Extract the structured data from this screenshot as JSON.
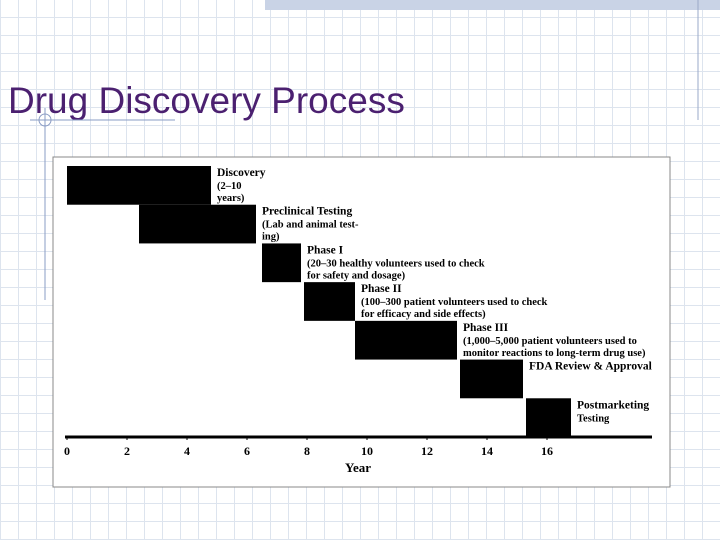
{
  "chart_data": {
    "type": "gantt",
    "title": "Drug Discovery Process",
    "tasks": [
      {
        "name": "Discovery",
        "notes": [
          "(2–10",
          "years)"
        ],
        "start": 0,
        "end": 4.8
      },
      {
        "name": "Preclinical Testing",
        "notes": [
          "(Lab and animal test-",
          "ing)"
        ],
        "start": 2.4,
        "end": 6.3
      },
      {
        "name": "Phase I",
        "notes": [
          "(20–30 healthy volunteers used to check",
          "for safety and dosage)"
        ],
        "start": 6.5,
        "end": 7.8
      },
      {
        "name": "Phase II",
        "notes": [
          "(100–300 patient volunteers used to check",
          "for efficacy and side effects)"
        ],
        "start": 7.9,
        "end": 9.6
      },
      {
        "name": "Phase III",
        "notes": [
          "(1,000–5,000 patient volunteers used to",
          "monitor reactions to long-term drug use)"
        ],
        "start": 9.6,
        "end": 13
      },
      {
        "name": "FDA Review & Approval",
        "notes": [],
        "start": 13.1,
        "end": 15.2
      },
      {
        "name": "Postmarketing",
        "notes": [
          "Testing"
        ],
        "start": 15.3,
        "end": 16.8
      }
    ],
    "color": "#000000",
    "xlim": [
      0,
      19.5
    ],
    "xticks": [
      0,
      2,
      4,
      6,
      8,
      10,
      12,
      14,
      16
    ],
    "xlabel": "Year"
  }
}
